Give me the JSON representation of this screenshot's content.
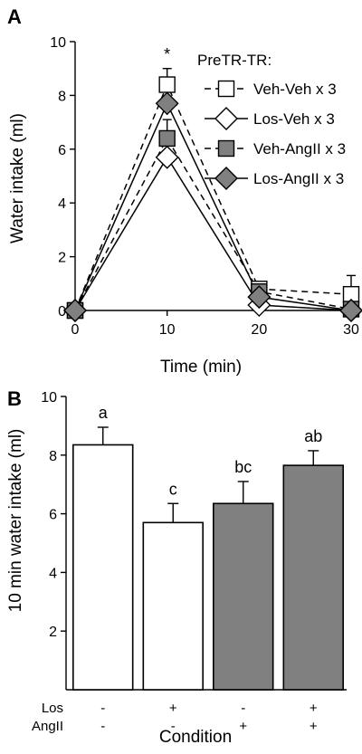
{
  "chart_data": [
    {
      "panel_label": "A",
      "type": "line",
      "xlabel": "Time (min)",
      "ylabel": "Water intake (ml)",
      "xlim": [
        0,
        30
      ],
      "ylim": [
        0,
        10
      ],
      "x_ticks": [
        0,
        10,
        20,
        30
      ],
      "y_ticks": [
        0,
        2,
        4,
        6,
        8,
        10
      ],
      "legend_title": "PreTR-TR:",
      "legend_position": "top-right",
      "significance_marker": {
        "x": 10,
        "label": "*"
      },
      "x": [
        0,
        10,
        20,
        30
      ],
      "series": [
        {
          "name": "Veh-Veh x 3",
          "values": [
            0,
            8.4,
            0.8,
            0.6
          ],
          "errors": [
            0,
            0.6,
            0.2,
            0.7
          ],
          "marker": "square",
          "fill": "#ffffff",
          "dash": true
        },
        {
          "name": "Los-Veh x 3",
          "values": [
            0,
            5.7,
            0.2,
            0.0
          ],
          "errors": [
            0,
            0.7,
            0.1,
            0.1
          ],
          "marker": "diamond",
          "fill": "#ffffff",
          "dash": false
        },
        {
          "name": "Veh-AngII x 3",
          "values": [
            0,
            6.4,
            0.7,
            0.05
          ],
          "errors": [
            0,
            0.7,
            0.2,
            0.1
          ],
          "marker": "square",
          "fill": "#808080",
          "dash": true
        },
        {
          "name": "Los-AngII x 3",
          "values": [
            0,
            7.7,
            0.5,
            0.0
          ],
          "errors": [
            0,
            0.5,
            0.2,
            0.1
          ],
          "marker": "diamond",
          "fill": "#808080",
          "dash": false
        }
      ]
    },
    {
      "panel_label": "B",
      "type": "bar",
      "xlabel": "Condition",
      "ylabel": "10 min water intake (ml)",
      "ylim": [
        0,
        10
      ],
      "y_ticks": [
        2,
        4,
        6,
        8,
        10
      ],
      "values": [
        8.35,
        5.7,
        6.35,
        7.65
      ],
      "errors": [
        0.6,
        0.65,
        0.75,
        0.5
      ],
      "bar_colors": [
        "#ffffff",
        "#ffffff",
        "#808080",
        "#808080"
      ],
      "letters": [
        "a",
        "c",
        "bc",
        "ab"
      ],
      "condition_rows": [
        {
          "label": "Los",
          "values": [
            "-",
            "+",
            "-",
            "+"
          ]
        },
        {
          "label": "AngII",
          "values": [
            "-",
            "-",
            "+",
            "+"
          ]
        }
      ]
    }
  ]
}
